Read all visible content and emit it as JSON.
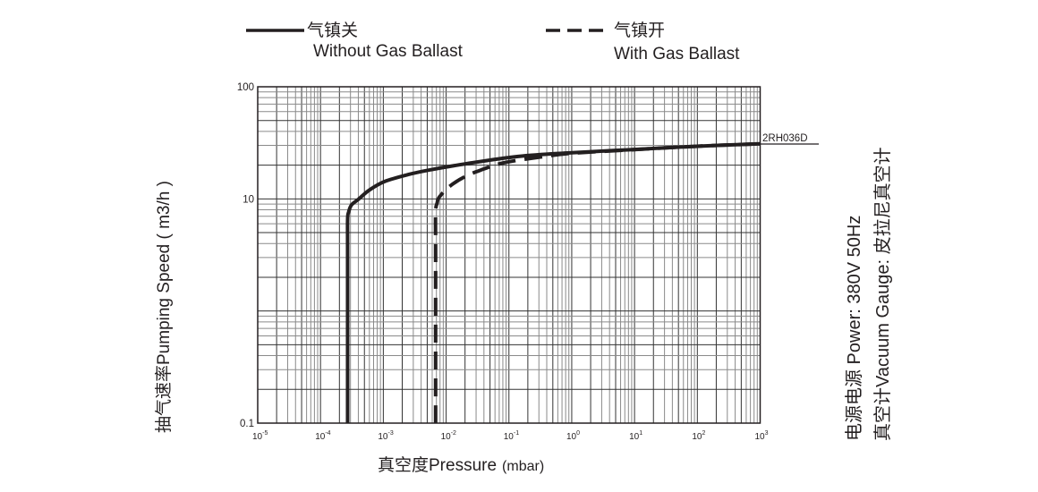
{
  "legend": {
    "solid": {
      "cn": "气镇关",
      "en": "Without Gas Ballast"
    },
    "dashed": {
      "cn": "气镇开",
      "en": "With Gas Ballast"
    }
  },
  "side_notes": {
    "power": "电源电源  Power:  380V 50Hz",
    "gauge": "真空计Vacuum Gauge:  皮拉尼真空计"
  },
  "chart_data": {
    "type": "line",
    "xlabel": "真空度Pressure (mbar)",
    "xlabel_main": "真空度Pressure",
    "xlabel_unit": "(mbar)",
    "ylabel": "抽气速率Pumping Speed ( m3/h )",
    "x_scale": "log",
    "y_scale": "log",
    "xlim": [
      1e-05,
      1000
    ],
    "ylim": [
      0.1,
      100
    ],
    "x_ticks": [
      {
        "base": "10",
        "exp": "-5"
      },
      {
        "base": "10",
        "exp": "-4"
      },
      {
        "base": "10",
        "exp": "-3"
      },
      {
        "base": "10",
        "exp": "-2"
      },
      {
        "base": "10",
        "exp": "-1"
      },
      {
        "base": "10",
        "exp": "0"
      },
      {
        "base": "10",
        "exp": "1"
      },
      {
        "base": "10",
        "exp": "2"
      },
      {
        "base": "10",
        "exp": "3"
      }
    ],
    "y_ticks": [
      {
        "value": 100,
        "label": "100"
      },
      {
        "value": 10,
        "label": "10"
      },
      {
        "value": 0.1,
        "label": "0.1"
      }
    ],
    "grid": true,
    "curve_label": "2RH036D",
    "series": [
      {
        "name": "气镇关 Without Gas Ballast",
        "style": "solid",
        "points": [
          [
            0.00027,
            0.1
          ],
          [
            0.00027,
            3
          ],
          [
            0.00027,
            6.5
          ],
          [
            0.00028,
            7.6
          ],
          [
            0.00031,
            8.8
          ],
          [
            0.0004,
            9.9
          ],
          [
            0.0006,
            12
          ],
          [
            0.00105,
            14.3
          ],
          [
            0.0025,
            16.5
          ],
          [
            0.0054,
            18.1
          ],
          [
            0.02,
            20.5
          ],
          [
            0.14,
            23.9
          ],
          [
            1,
            25.8
          ],
          [
            10,
            27.6
          ],
          [
            100,
            29.5
          ],
          [
            1000,
            31
          ]
        ]
      },
      {
        "name": "气镇开 With Gas Ballast",
        "style": "dashed",
        "points": [
          [
            0.0068,
            0.1
          ],
          [
            0.0068,
            3
          ],
          [
            0.0068,
            7.5
          ],
          [
            0.0072,
            9.2
          ],
          [
            0.0078,
            10.4
          ],
          [
            0.0115,
            13
          ],
          [
            0.02,
            15.8
          ],
          [
            0.035,
            18
          ],
          [
            0.083,
            21
          ],
          [
            0.3,
            23.5
          ],
          [
            1,
            25.5
          ],
          [
            10,
            27.5
          ],
          [
            100,
            29.5
          ],
          [
            1000,
            31
          ]
        ]
      }
    ]
  }
}
